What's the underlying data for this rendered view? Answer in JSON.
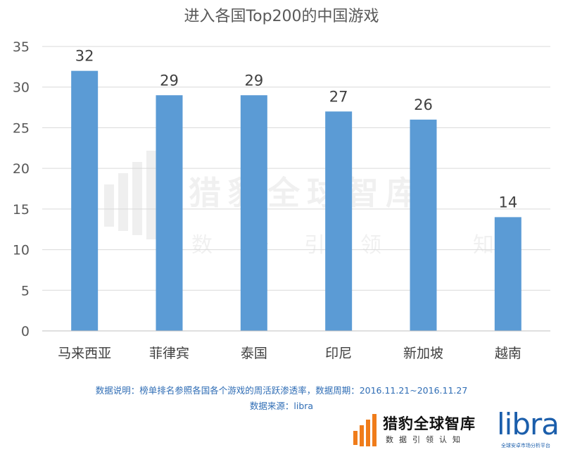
{
  "chart_data": {
    "type": "bar",
    "title": "进入各国Top200的中国游戏",
    "categories": [
      "马来西亚",
      "菲律宾",
      "泰国",
      "印尼",
      "新加坡",
      "越南"
    ],
    "values": [
      32,
      29,
      29,
      27,
      26,
      14
    ],
    "yticks": [
      0,
      5,
      10,
      15,
      20,
      25,
      30,
      35
    ],
    "ylim": [
      0,
      35
    ],
    "grid": true,
    "bar_color": "#5b9bd5",
    "xlabel": "",
    "ylabel": ""
  },
  "watermark": {
    "main": "猎豹全球智库",
    "sub": [
      "数",
      "据",
      "引",
      "领",
      "认",
      "知"
    ]
  },
  "footer": {
    "note": "数据说明：榜单排名参照各国各个游戏的周活跃渗透率，数据周期：2016.11.21~2016.11.27",
    "source": "数据来源：libra"
  },
  "brand": {
    "name_cn": "猎豹全球智库",
    "tagline_cn": "数据引领认知",
    "libra": "libra",
    "libra_tagline": "全球安卓市场分析平台",
    "logo_color": "#f07c1a",
    "libra_color": "#1b5eab"
  }
}
